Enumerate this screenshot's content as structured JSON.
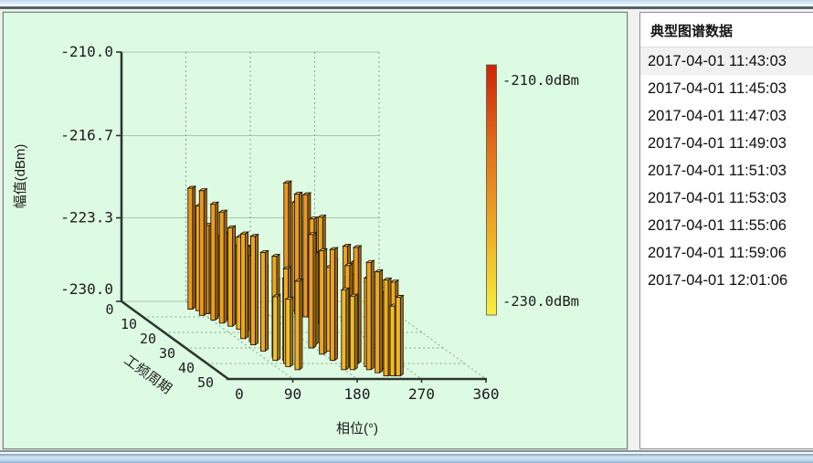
{
  "right_panel": {
    "title": "典型图谱数据",
    "items": [
      "2017-04-01 11:43:03",
      "2017-04-01 11:45:03",
      "2017-04-01 11:47:03",
      "2017-04-01 11:49:03",
      "2017-04-01 11:51:03",
      "2017-04-01 11:53:03",
      "2017-04-01 11:55:06",
      "2017-04-01 11:59:06",
      "2017-04-01 12:01:06"
    ],
    "selected_index": 0
  },
  "chart_data": {
    "type": "bar",
    "subtype": "3d-prpd",
    "title": "",
    "xlabel": "相位(°)",
    "ylabel": "幅值(dBm)",
    "depth_label": "工频周期",
    "x_ticks": [
      "0",
      "90",
      "180",
      "270",
      "360"
    ],
    "x_tick_values": [
      0,
      90,
      180,
      270,
      360
    ],
    "y_ticks": [
      "-210.0",
      "-216.7",
      "-223.3",
      "-230.0"
    ],
    "y_tick_values": [
      -210.0,
      -216.7,
      -223.3,
      -230.0
    ],
    "depth_ticks": [
      "0",
      "10",
      "20",
      "30",
      "40",
      "50"
    ],
    "depth_tick_values": [
      0,
      10,
      20,
      30,
      40,
      50
    ],
    "xlim": [
      0,
      360
    ],
    "ylim": [
      -230.0,
      -210.0
    ],
    "depth_lim": [
      0,
      50
    ],
    "grid": true,
    "colorbar": {
      "max_label": "-210.0dBm",
      "min_label": "-230.0dBm",
      "stops": [
        "#cf2505",
        "#e2731a",
        "#f0b225",
        "#f8ef40"
      ]
    },
    "colors": {
      "background": "#ddfbe3",
      "axis": "#2e352e",
      "grid_solid": "#a9c7ab",
      "grid_dotted": "#84a589",
      "text": "#1b1b1b",
      "bar_outline": "#241703"
    },
    "bars_format": [
      "phase_deg",
      "power_cycle",
      "amplitude_dBm"
    ],
    "bars": [
      [
        78,
        5,
        -220.3
      ],
      [
        82,
        9,
        -220.0
      ],
      [
        86,
        6,
        -221.6
      ],
      [
        89,
        12,
        -220.7
      ],
      [
        92,
        8,
        -222.9
      ],
      [
        95,
        14,
        -221.1
      ],
      [
        98,
        10,
        -223.6
      ],
      [
        101,
        16,
        -222.1
      ],
      [
        104,
        12,
        -223.1
      ],
      [
        107,
        18,
        -222.6
      ],
      [
        110,
        14,
        -223.9
      ],
      [
        113,
        19,
        -223.3
      ],
      [
        100,
        5,
        -224.1
      ],
      [
        106,
        7,
        -224.6
      ],
      [
        95,
        24,
        -221.6
      ],
      [
        97,
        28,
        -221.3
      ],
      [
        99,
        32,
        -222.1
      ],
      [
        101,
        26,
        -223.1
      ],
      [
        103,
        36,
        -221.9
      ],
      [
        105,
        30,
        -223.6
      ],
      [
        107,
        40,
        -222.4
      ],
      [
        109,
        34,
        -224.1
      ],
      [
        111,
        44,
        -222.9
      ],
      [
        104,
        42,
        -224.6
      ],
      [
        98,
        38,
        -224.9
      ],
      [
        112,
        38,
        -223.4
      ],
      [
        215,
        4,
        -220.0
      ],
      [
        218,
        8,
        -220.4
      ],
      [
        221,
        6,
        -221.3
      ],
      [
        224,
        10,
        -220.2
      ],
      [
        227,
        12,
        -221.9
      ],
      [
        230,
        8,
        -222.6
      ],
      [
        233,
        14,
        -221.5
      ],
      [
        172,
        30,
        -220.9
      ],
      [
        175,
        34,
        -221.7
      ],
      [
        178,
        38,
        -221.1
      ],
      [
        181,
        28,
        -222.7
      ],
      [
        184,
        36,
        -222.3
      ],
      [
        187,
        42,
        -221.9
      ],
      [
        190,
        32,
        -223.3
      ],
      [
        193,
        40,
        -223.0
      ],
      [
        176,
        44,
        -223.6
      ],
      [
        188,
        44,
        -224.1
      ],
      [
        202,
        36,
        -221.1
      ],
      [
        205,
        40,
        -220.7
      ],
      [
        208,
        38,
        -222.1
      ],
      [
        211,
        44,
        -221.4
      ],
      [
        214,
        42,
        -222.9
      ],
      [
        217,
        46,
        -221.9
      ],
      [
        220,
        40,
        -223.5
      ],
      [
        223,
        48,
        -222.3
      ],
      [
        226,
        44,
        -223.9
      ],
      [
        229,
        46,
        -223.1
      ],
      [
        232,
        48,
        -224.4
      ],
      [
        236,
        47,
        -222.6
      ],
      [
        240,
        48,
        -223.7
      ]
    ]
  }
}
